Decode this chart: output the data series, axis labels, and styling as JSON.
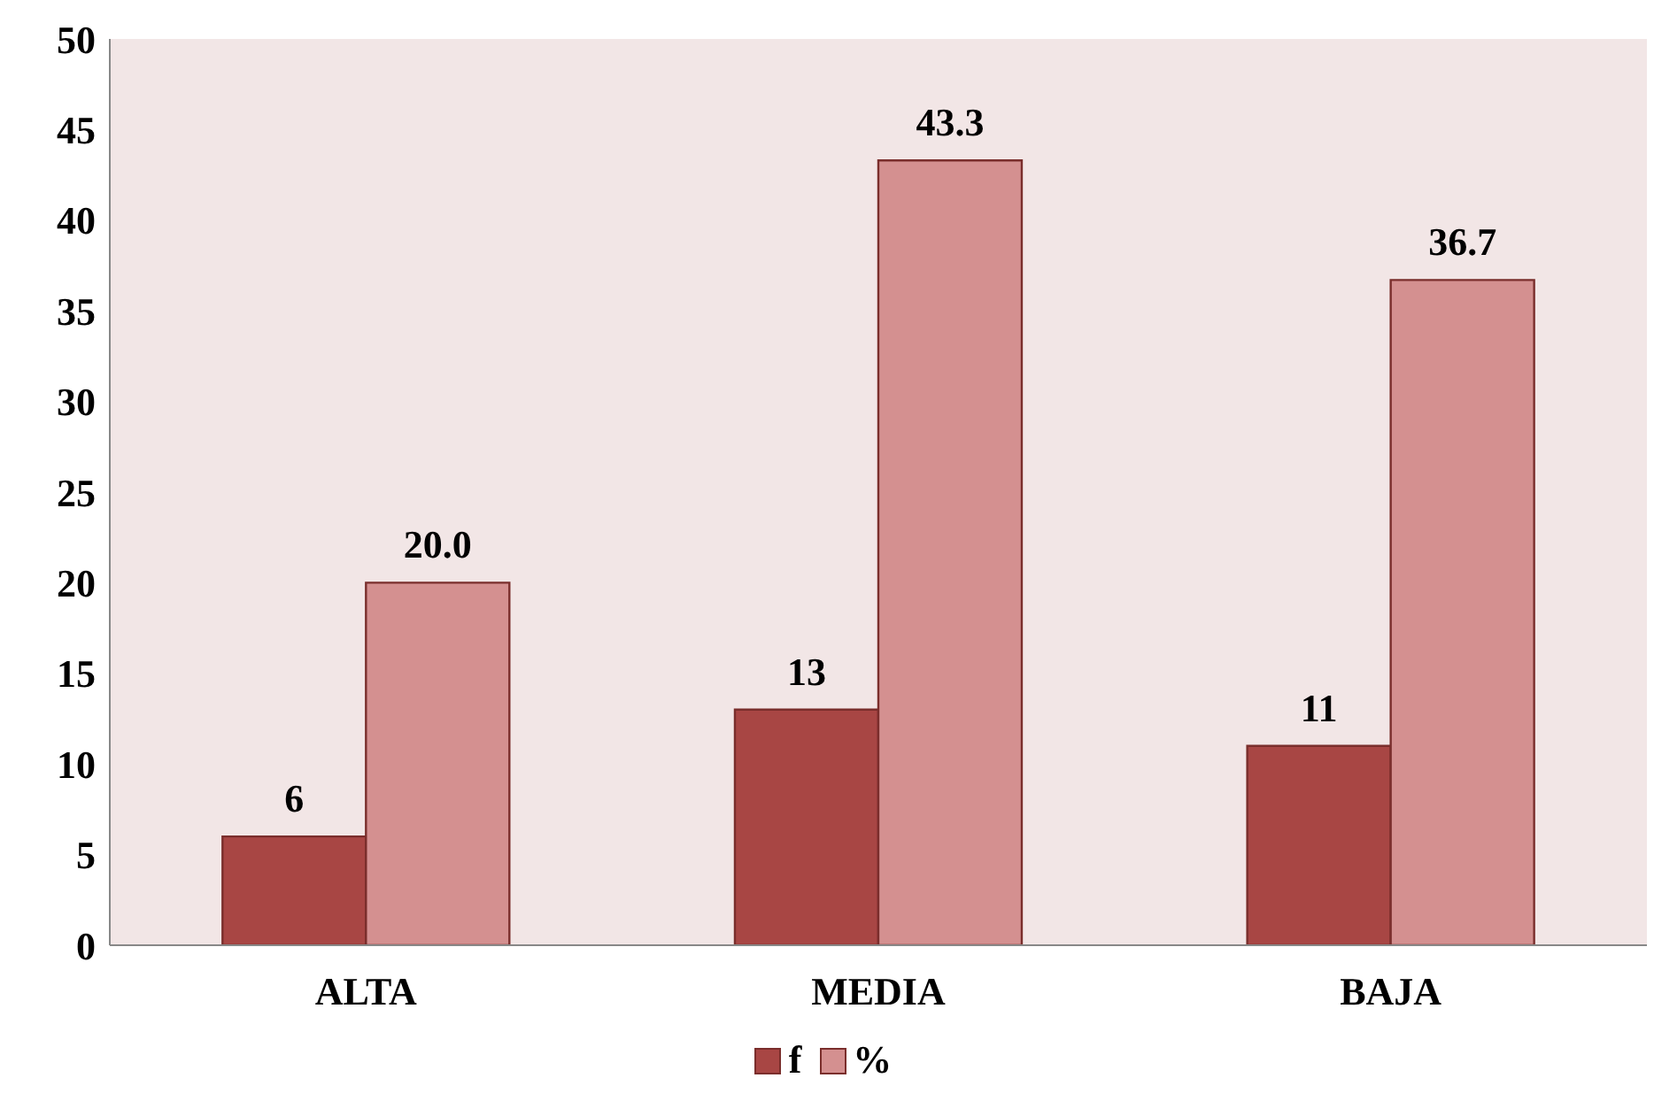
{
  "chart_data": {
    "type": "bar",
    "categories": [
      "ALTA",
      "MEDIA",
      "BAJA"
    ],
    "series": [
      {
        "name": "f",
        "color": "#a84644",
        "values": [
          6,
          13,
          11
        ],
        "value_labels": [
          "6",
          "13",
          "11"
        ]
      },
      {
        "name": "%",
        "color": "#d49090",
        "values": [
          20.0,
          43.3,
          36.7
        ],
        "value_labels": [
          "20.0",
          "43.3",
          "36.7"
        ]
      }
    ],
    "ylim": [
      0,
      50
    ],
    "yticks": [
      0,
      5,
      10,
      15,
      20,
      25,
      30,
      35,
      40,
      45,
      50
    ],
    "legend": "bottom"
  }
}
